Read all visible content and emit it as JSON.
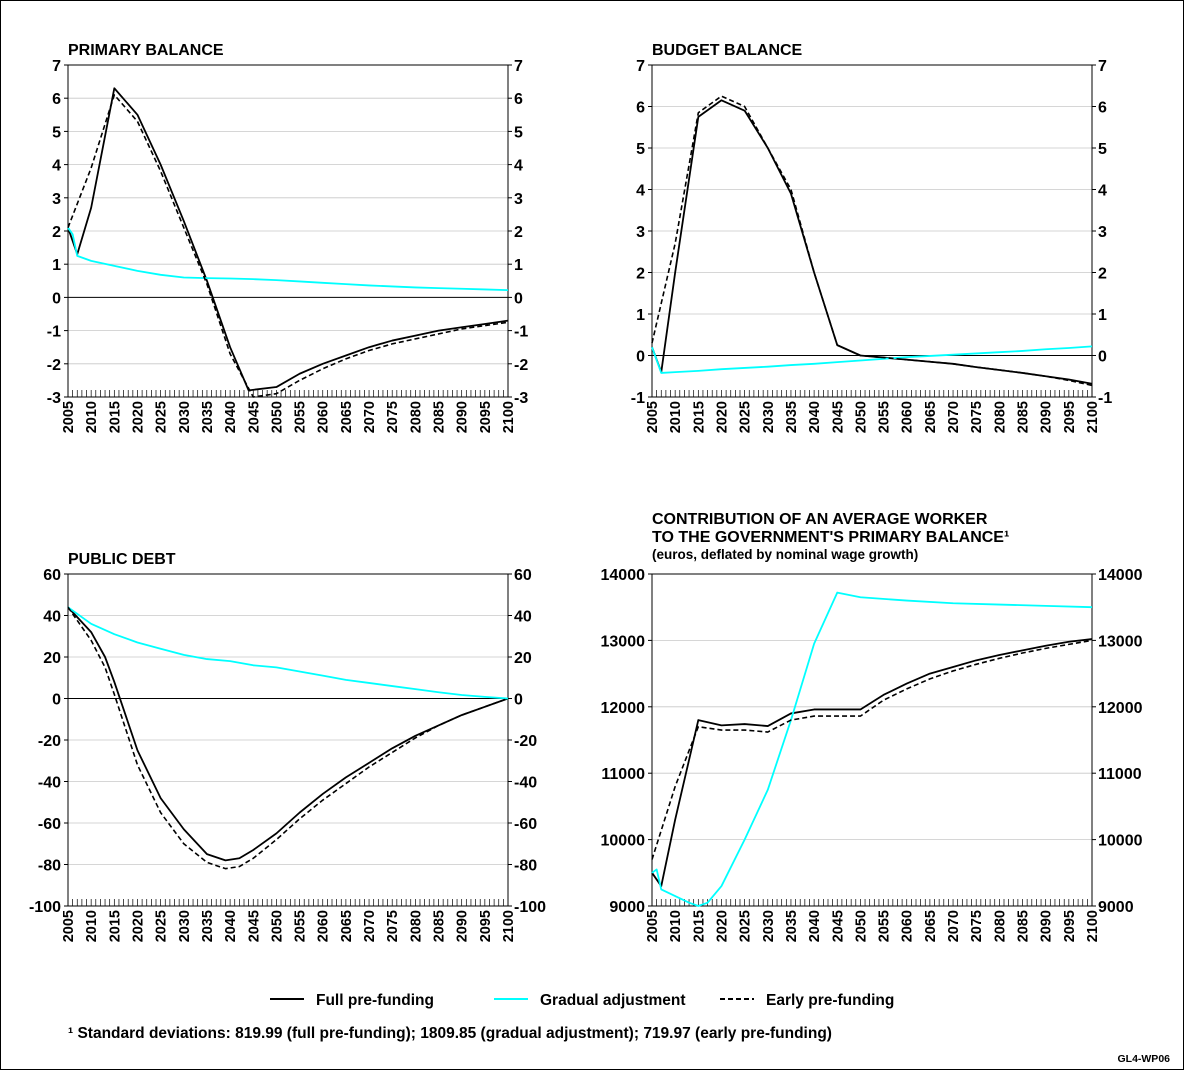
{
  "legend": {
    "items": [
      {
        "label": "Full pre-funding",
        "color": "#000000",
        "dash": false
      },
      {
        "label": "Gradual adjustment",
        "color": "#00ffff",
        "dash": false
      },
      {
        "label": "Early pre-funding",
        "color": "#000000",
        "dash": true
      }
    ]
  },
  "footnote": "¹ Standard deviations: 819.99 (full pre-funding); 1809.85 (gradual adjustment); 719.97 (early pre-funding)",
  "figure_code": "GL4-WP06",
  "chart_data": [
    {
      "type": "line",
      "title": "PRIMARY BALANCE",
      "xlim": [
        2005,
        2100
      ],
      "ylim": [
        -3,
        7
      ],
      "yticks": [
        -3,
        -2,
        -1,
        0,
        1,
        2,
        3,
        4,
        5,
        6,
        7
      ],
      "xticks": [
        2005,
        2010,
        2015,
        2020,
        2025,
        2030,
        2035,
        2040,
        2045,
        2050,
        2055,
        2060,
        2065,
        2070,
        2075,
        2080,
        2085,
        2090,
        2095,
        2100
      ],
      "grid": true,
      "series": [
        {
          "name": "Full pre-funding",
          "x": [
            2005,
            2007,
            2010,
            2015,
            2020,
            2025,
            2030,
            2035,
            2040,
            2044,
            2050,
            2055,
            2060,
            2065,
            2070,
            2075,
            2080,
            2085,
            2090,
            2095,
            2100
          ],
          "y": [
            2.1,
            1.3,
            2.7,
            6.3,
            5.5,
            4.0,
            2.3,
            0.5,
            -1.5,
            -2.8,
            -2.7,
            -2.3,
            -2.0,
            -1.75,
            -1.5,
            -1.3,
            -1.15,
            -1.0,
            -0.9,
            -0.8,
            -0.7
          ]
        },
        {
          "name": "Gradual adjustment",
          "x": [
            2005,
            2006,
            2007,
            2010,
            2015,
            2020,
            2025,
            2030,
            2035,
            2040,
            2045,
            2050,
            2055,
            2060,
            2065,
            2070,
            2075,
            2080,
            2085,
            2090,
            2095,
            2100
          ],
          "y": [
            2.1,
            1.9,
            1.25,
            1.1,
            0.95,
            0.8,
            0.68,
            0.6,
            0.58,
            0.57,
            0.55,
            0.52,
            0.48,
            0.44,
            0.4,
            0.36,
            0.33,
            0.3,
            0.28,
            0.26,
            0.24,
            0.22
          ]
        },
        {
          "name": "Early pre-funding",
          "x": [
            2005,
            2010,
            2015,
            2020,
            2025,
            2030,
            2035,
            2040,
            2045,
            2050,
            2055,
            2060,
            2065,
            2070,
            2075,
            2080,
            2085,
            2090,
            2095,
            2100
          ],
          "y": [
            2.1,
            3.9,
            6.1,
            5.3,
            3.8,
            2.1,
            0.4,
            -1.7,
            -3.0,
            -2.9,
            -2.5,
            -2.15,
            -1.85,
            -1.6,
            -1.4,
            -1.25,
            -1.1,
            -0.95,
            -0.85,
            -0.75
          ]
        }
      ]
    },
    {
      "type": "line",
      "title": "BUDGET  BALANCE",
      "xlim": [
        2005,
        2100
      ],
      "ylim": [
        -1,
        7
      ],
      "yticks": [
        -1,
        0,
        1,
        2,
        3,
        4,
        5,
        6,
        7
      ],
      "xticks": [
        2005,
        2010,
        2015,
        2020,
        2025,
        2030,
        2035,
        2040,
        2045,
        2050,
        2055,
        2060,
        2065,
        2070,
        2075,
        2080,
        2085,
        2090,
        2095,
        2100
      ],
      "grid": true,
      "series": [
        {
          "name": "Full pre-funding",
          "x": [
            2005,
            2007,
            2010,
            2015,
            2020,
            2025,
            2030,
            2035,
            2040,
            2045,
            2050,
            2055,
            2060,
            2065,
            2070,
            2075,
            2080,
            2085,
            2090,
            2095,
            2100
          ],
          "y": [
            0.2,
            -0.4,
            2.0,
            5.75,
            6.15,
            5.9,
            5.0,
            3.9,
            2.0,
            0.25,
            0.0,
            -0.05,
            -0.1,
            -0.15,
            -0.2,
            -0.28,
            -0.35,
            -0.42,
            -0.5,
            -0.58,
            -0.68
          ]
        },
        {
          "name": "Gradual adjustment",
          "x": [
            2005,
            2007,
            2010,
            2015,
            2020,
            2025,
            2030,
            2035,
            2040,
            2045,
            2050,
            2055,
            2060,
            2065,
            2070,
            2075,
            2080,
            2085,
            2090,
            2095,
            2100
          ],
          "y": [
            0.2,
            -0.42,
            -0.4,
            -0.37,
            -0.33,
            -0.3,
            -0.27,
            -0.23,
            -0.2,
            -0.16,
            -0.12,
            -0.08,
            -0.04,
            -0.01,
            0.02,
            0.05,
            0.08,
            0.11,
            0.15,
            0.18,
            0.22
          ]
        },
        {
          "name": "Early pre-funding",
          "x": [
            2005,
            2010,
            2015,
            2020,
            2025,
            2030,
            2035,
            2040,
            2045,
            2050,
            2055,
            2060,
            2065,
            2070,
            2075,
            2080,
            2085,
            2090,
            2095,
            2100
          ],
          "y": [
            0.3,
            2.7,
            5.85,
            6.25,
            6.0,
            5.0,
            4.0,
            2.0,
            0.25,
            0.0,
            -0.05,
            -0.1,
            -0.15,
            -0.2,
            -0.28,
            -0.35,
            -0.42,
            -0.5,
            -0.6,
            -0.72
          ]
        }
      ]
    },
    {
      "type": "line",
      "title": "PUBLIC DEBT",
      "xlim": [
        2005,
        2100
      ],
      "ylim": [
        -100,
        60
      ],
      "yticks": [
        -100,
        -80,
        -60,
        -40,
        -20,
        0,
        20,
        40,
        60
      ],
      "xticks": [
        2005,
        2010,
        2015,
        2020,
        2025,
        2030,
        2035,
        2040,
        2045,
        2050,
        2055,
        2060,
        2065,
        2070,
        2075,
        2080,
        2085,
        2090,
        2095,
        2100
      ],
      "grid": true,
      "series": [
        {
          "name": "Full pre-funding",
          "x": [
            2005,
            2010,
            2013,
            2015,
            2020,
            2025,
            2030,
            2035,
            2039,
            2042,
            2045,
            2050,
            2055,
            2060,
            2065,
            2070,
            2075,
            2080,
            2085,
            2090,
            2095,
            2100
          ],
          "y": [
            44,
            32,
            20,
            8,
            -25,
            -48,
            -63,
            -75,
            -78,
            -77,
            -73,
            -65,
            -55,
            -46,
            -38,
            -31,
            -24,
            -18,
            -13,
            -8,
            -4,
            0
          ]
        },
        {
          "name": "Gradual adjustment",
          "x": [
            2005,
            2010,
            2015,
            2020,
            2025,
            2030,
            2035,
            2040,
            2045,
            2050,
            2055,
            2060,
            2065,
            2070,
            2075,
            2080,
            2085,
            2090,
            2095,
            2100
          ],
          "y": [
            44,
            36,
            31,
            27,
            24,
            21,
            19,
            18,
            16,
            15,
            13,
            11,
            9,
            7.5,
            6,
            4.5,
            3,
            1.7,
            0.8,
            0
          ]
        },
        {
          "name": "Early pre-funding",
          "x": [
            2005,
            2010,
            2013,
            2015,
            2020,
            2025,
            2030,
            2035,
            2039,
            2042,
            2045,
            2050,
            2055,
            2060,
            2065,
            2070,
            2075,
            2080,
            2085,
            2090,
            2095,
            2100
          ],
          "y": [
            44,
            28,
            15,
            2,
            -32,
            -55,
            -70,
            -79,
            -82,
            -81,
            -77,
            -68,
            -58,
            -49,
            -41,
            -33,
            -26,
            -19,
            -13,
            -8,
            -4,
            0
          ]
        }
      ]
    },
    {
      "type": "line",
      "title": "CONTRIBUTION OF AN AVERAGE WORKER",
      "title_line2": "TO THE GOVERNMENT'S PRIMARY BALANCE¹",
      "subtitle": "(euros, deflated by nominal wage growth)",
      "xlim": [
        2005,
        2100
      ],
      "ylim": [
        9000,
        14000
      ],
      "yticks": [
        9000,
        10000,
        11000,
        12000,
        13000,
        14000
      ],
      "xticks": [
        2005,
        2010,
        2015,
        2020,
        2025,
        2030,
        2035,
        2040,
        2045,
        2050,
        2055,
        2060,
        2065,
        2070,
        2075,
        2080,
        2085,
        2090,
        2095,
        2100
      ],
      "grid": true,
      "series": [
        {
          "name": "Full pre-funding",
          "x": [
            2005,
            2007,
            2010,
            2015,
            2020,
            2025,
            2030,
            2035,
            2040,
            2045,
            2050,
            2055,
            2060,
            2065,
            2070,
            2075,
            2080,
            2085,
            2090,
            2095,
            2100
          ],
          "y": [
            9500,
            9300,
            10300,
            11800,
            11720,
            11740,
            11710,
            11900,
            11960,
            11960,
            11960,
            12180,
            12350,
            12500,
            12600,
            12700,
            12780,
            12850,
            12920,
            12980,
            13020
          ]
        },
        {
          "name": "Gradual adjustment",
          "x": [
            2005,
            2006,
            2007,
            2010,
            2013,
            2015,
            2017,
            2020,
            2025,
            2030,
            2035,
            2040,
            2045,
            2050,
            2060,
            2070,
            2080,
            2090,
            2100
          ],
          "y": [
            9500,
            9550,
            9250,
            9150,
            9050,
            9000,
            9050,
            9300,
            10000,
            10750,
            11800,
            12950,
            13720,
            13650,
            13600,
            13560,
            13540,
            13520,
            13500
          ]
        },
        {
          "name": "Early pre-funding",
          "x": [
            2005,
            2010,
            2015,
            2020,
            2025,
            2030,
            2035,
            2040,
            2045,
            2050,
            2055,
            2060,
            2065,
            2070,
            2075,
            2080,
            2085,
            2090,
            2095,
            2100
          ],
          "y": [
            9700,
            10800,
            11700,
            11650,
            11650,
            11620,
            11800,
            11860,
            11860,
            11860,
            12100,
            12270,
            12420,
            12540,
            12640,
            12730,
            12810,
            12880,
            12940,
            13000
          ]
        }
      ]
    }
  ]
}
